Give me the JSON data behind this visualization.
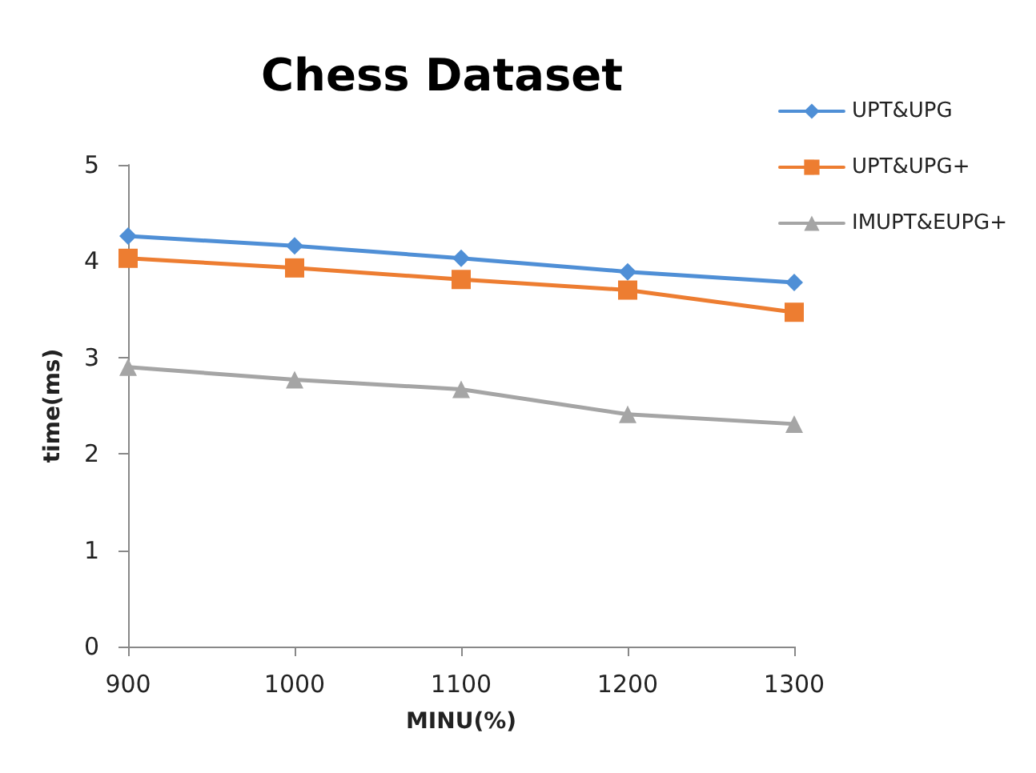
{
  "chart_data": {
    "type": "line",
    "title": "Chess Dataset",
    "xlabel": "MINU(%)",
    "ylabel": "time(ms)",
    "x": [
      900,
      1000,
      1100,
      1200,
      1300
    ],
    "series": [
      {
        "name": "UPT&UPG",
        "color": "#4f8fd6",
        "marker": "diamond",
        "values": [
          4.26,
          4.16,
          4.03,
          3.89,
          3.78
        ]
      },
      {
        "name": "UPT&UPG+",
        "color": "#ed7d31",
        "marker": "square",
        "values": [
          4.03,
          3.93,
          3.81,
          3.7,
          3.47
        ]
      },
      {
        "name": "IMUPT&EUPG+",
        "color": "#a5a5a5",
        "marker": "triangle",
        "values": [
          2.9,
          2.77,
          2.67,
          2.41,
          2.31
        ]
      }
    ],
    "xlim": [
      900,
      1300
    ],
    "xticks": [
      900,
      1000,
      1100,
      1200,
      1300
    ],
    "ylim": [
      0,
      5
    ],
    "yticks": [
      0,
      1,
      2,
      3,
      4,
      5
    ],
    "grid": false,
    "legend": "top right",
    "line_style": "solid"
  }
}
